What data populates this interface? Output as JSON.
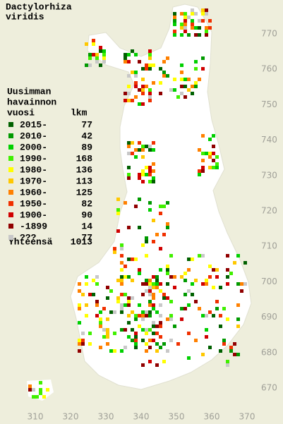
{
  "title": [
    "Dactylorhiza",
    "viridis"
  ],
  "legend": {
    "header": [
      "Uusimman",
      "havainnon",
      "vuosi"
    ],
    "count_header": "lkm",
    "rows": [
      {
        "label": "2015-",
        "count": 77,
        "color": "#006000"
      },
      {
        "label": "2010-",
        "count": 42,
        "color": "#009a00"
      },
      {
        "label": "2000-",
        "count": 89,
        "color": "#00d000"
      },
      {
        "label": "1990-",
        "count": 168,
        "color": "#40f000"
      },
      {
        "label": "1980-",
        "count": 136,
        "color": "#ffff00"
      },
      {
        "label": "1970-",
        "count": 113,
        "color": "#ffc800"
      },
      {
        "label": "1960-",
        "count": 125,
        "color": "#ff8000"
      },
      {
        "label": "1950-",
        "count": 82,
        "color": "#f03000"
      },
      {
        "label": "1900-",
        "count": 90,
        "color": "#d00000"
      },
      {
        "label": "-1899",
        "count": 14,
        "color": "#900000"
      },
      {
        "label": "???",
        "count": 77,
        "color": "#c8c8c8"
      }
    ],
    "total_label": "Yhteensä",
    "total": 1013
  },
  "x_ticks": [
    310,
    320,
    330,
    340,
    350,
    360,
    370
  ],
  "y_ticks": [
    670,
    680,
    690,
    700,
    710,
    720,
    730,
    740,
    750,
    760,
    770
  ]
}
